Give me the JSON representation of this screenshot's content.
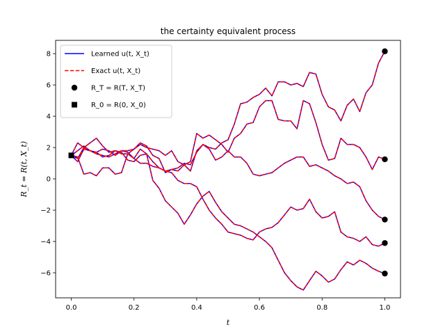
{
  "chart_data": {
    "type": "line",
    "title": "the certainty equivalent process",
    "xlabel": "t",
    "ylabel": "R_t = R(t, X_t)",
    "xlim": [
      -0.05,
      1.05
    ],
    "ylim": [
      -7.6,
      8.85
    ],
    "xticks": [
      0.0,
      0.2,
      0.4,
      0.6,
      0.8,
      1.0
    ],
    "xtick_labels": [
      "0.0",
      "0.2",
      "0.4",
      "0.6",
      "0.8",
      "1.0"
    ],
    "yticks": [
      -6,
      -4,
      -2,
      0,
      2,
      4,
      6,
      8
    ],
    "ytick_labels": [
      "−6",
      "−4",
      "−2",
      "0",
      "2",
      "4",
      "6",
      "8"
    ],
    "grid": false,
    "legend_position": "top-left",
    "legend": [
      {
        "label": "Learned u(t, X_t)",
        "style": "solid-line",
        "color": "#0000ff"
      },
      {
        "label": "Exact u(t, X_t)",
        "style": "dashed-line",
        "color": "#ff0000"
      },
      {
        "label": "R_T = R(T, X_T)",
        "style": "circle-marker",
        "color": "#000000"
      },
      {
        "label": "R_0 = R(0, X_0)",
        "style": "square-marker",
        "color": "#000000"
      }
    ],
    "x": [
      0.0,
      0.02,
      0.04,
      0.06,
      0.08,
      0.1,
      0.12,
      0.14,
      0.16,
      0.18,
      0.2,
      0.22,
      0.24,
      0.26,
      0.28,
      0.3,
      0.32,
      0.34,
      0.36,
      0.38,
      0.4,
      0.42,
      0.44,
      0.46,
      0.48,
      0.5,
      0.52,
      0.54,
      0.56,
      0.58,
      0.6,
      0.62,
      0.64,
      0.66,
      0.68,
      0.7,
      0.72,
      0.74,
      0.76,
      0.78,
      0.8,
      0.82,
      0.84,
      0.86,
      0.88,
      0.9,
      0.92,
      0.94,
      0.96,
      0.98,
      1.0
    ],
    "series": [
      {
        "values": [
          1.5,
          1.1,
          1.9,
          1.8,
          1.6,
          1.5,
          1.4,
          1.6,
          1.8,
          1.8,
          1.9,
          2.3,
          2.1,
          1.5,
          1.3,
          0.4,
          0.6,
          0.7,
          1.0,
          0.9,
          1.7,
          2.2,
          2.0,
          1.9,
          2.3,
          2.5,
          3.5,
          4.8,
          4.9,
          5.2,
          5.4,
          5.8,
          5.3,
          6.2,
          6.2,
          6.0,
          6.1,
          5.9,
          6.8,
          6.7,
          5.4,
          4.6,
          4.4,
          3.7,
          4.7,
          5.1,
          4.3,
          5.5,
          6.0,
          7.4,
          8.15
        ]
      },
      {
        "values": [
          1.5,
          1.3,
          2.0,
          2.3,
          2.6,
          2.1,
          1.7,
          1.8,
          1.6,
          1.6,
          1.9,
          2.2,
          2.0,
          1.9,
          1.8,
          1.5,
          1.8,
          1.1,
          0.9,
          1.1,
          2.9,
          2.6,
          2.8,
          2.5,
          2.2,
          1.7,
          2.6,
          2.9,
          3.5,
          3.6,
          4.6,
          5.0,
          5.0,
          3.8,
          3.7,
          3.7,
          3.2,
          5.0,
          4.8,
          3.6,
          2.2,
          1.2,
          1.3,
          2.6,
          2.2,
          2.2,
          2.0,
          1.4,
          0.6,
          1.4,
          1.25
        ]
      },
      {
        "values": [
          1.5,
          1.4,
          0.3,
          0.4,
          0.2,
          0.7,
          0.7,
          0.3,
          0.4,
          1.6,
          1.3,
          1.0,
          1.0,
          0.8,
          0.7,
          0.5,
          0.6,
          0.5,
          0.9,
          0.5,
          1.8,
          2.2,
          1.9,
          1.2,
          1.4,
          1.8,
          1.4,
          1.4,
          1.0,
          0.3,
          0.2,
          0.3,
          0.4,
          0.7,
          1.0,
          1.2,
          1.4,
          1.4,
          0.8,
          0.9,
          0.7,
          0.5,
          0.2,
          0.0,
          -0.3,
          -0.2,
          -0.5,
          -1.4,
          -2.0,
          -2.4,
          -2.6
        ]
      },
      {
        "values": [
          1.5,
          1.8,
          2.1,
          1.8,
          1.7,
          1.9,
          1.8,
          1.5,
          1.8,
          1.7,
          1.3,
          1.9,
          1.6,
          1.1,
          0.7,
          0.5,
          0.4,
          -0.1,
          -0.3,
          -0.3,
          -0.5,
          -1.3,
          -2.0,
          -2.5,
          -2.9,
          -3.4,
          -3.5,
          -3.6,
          -3.8,
          -3.9,
          -3.4,
          -3.2,
          -3.1,
          -2.8,
          -2.3,
          -1.8,
          -2.0,
          -1.9,
          -1.3,
          -2.1,
          -2.5,
          -2.4,
          -2.1,
          -3.4,
          -3.7,
          -3.8,
          -4.0,
          -3.7,
          -4.2,
          -4.3,
          -4.1
        ]
      },
      {
        "values": [
          1.5,
          2.3,
          2.0,
          1.8,
          1.7,
          1.4,
          1.5,
          1.8,
          1.7,
          1.2,
          1.1,
          1.5,
          1.6,
          -0.1,
          -0.6,
          -1.4,
          -1.8,
          -2.2,
          -2.9,
          -2.3,
          -1.6,
          -1.1,
          -0.8,
          -1.5,
          -2.1,
          -2.5,
          -2.9,
          -3.0,
          -3.2,
          -3.4,
          -3.7,
          -4.0,
          -4.4,
          -5.2,
          -6.0,
          -6.5,
          -6.9,
          -7.1,
          -6.5,
          -5.9,
          -6.2,
          -6.6,
          -6.4,
          -5.8,
          -5.3,
          -5.5,
          -5.2,
          -5.4,
          -5.7,
          -5.9,
          -6.05
        ]
      }
    ],
    "terminal_points": [
      8.15,
      1.25,
      -2.6,
      -4.1,
      -6.05
    ],
    "initial_point": 1.5
  },
  "colors": {
    "learned": "#0000ff",
    "exact": "#ff0000",
    "marker": "#000000"
  }
}
